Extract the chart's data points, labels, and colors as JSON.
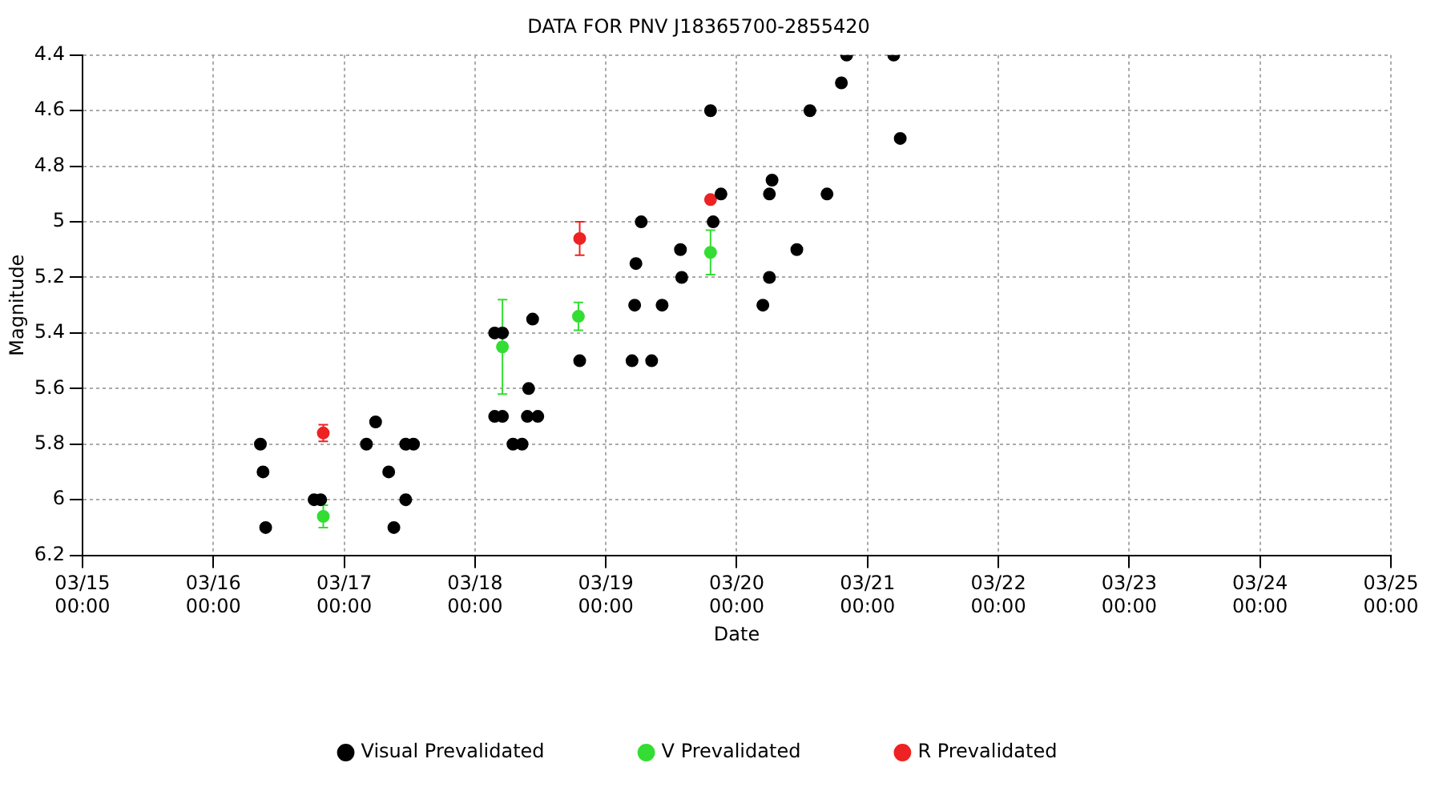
{
  "chart_data": {
    "type": "scatter",
    "title": "DATA FOR PNV J18365700-2855420",
    "xlabel": "Date",
    "ylabel": "Magnitude",
    "xlim": [
      "--03-15T00:00",
      "--03-25T00:00"
    ],
    "xticks": [
      {
        "value": "--03-15T00:00",
        "label": "03/15\n00:00"
      },
      {
        "value": "--03-16T00:00",
        "label": "03/16\n00:00"
      },
      {
        "value": "--03-17T00:00",
        "label": "03/17\n00:00"
      },
      {
        "value": "--03-18T00:00",
        "label": "03/18\n00:00"
      },
      {
        "value": "--03-19T00:00",
        "label": "03/19\n00:00"
      },
      {
        "value": "--03-20T00:00",
        "label": "03/20\n00:00"
      },
      {
        "value": "--03-21T00:00",
        "label": "03/21\n00:00"
      },
      {
        "value": "--03-22T00:00",
        "label": "03/22\n00:00"
      },
      {
        "value": "--03-23T00:00",
        "label": "03/23\n00:00"
      },
      {
        "value": "--03-24T00:00",
        "label": "03/24\n00:00"
      },
      {
        "value": "--03-25T00:00",
        "label": "03/25\n00:00"
      }
    ],
    "ylim": [
      6.2,
      4.4
    ],
    "yticks": [
      4.4,
      4.6,
      4.8,
      5,
      5.2,
      5.4,
      5.6,
      5.8,
      6,
      6.2
    ],
    "grid": true,
    "legend": "bottom",
    "marker": "circle",
    "series": [
      {
        "name": "Visual Prevalidated",
        "color": "#000000",
        "x": [
          "--03-16T08:38",
          "--03-16T09:07",
          "--03-16T09:36",
          "--03-16T18:29",
          "--03-16T19:41",
          "--03-17T04:05",
          "--03-17T05:46",
          "--03-17T08:10",
          "--03-17T09:07",
          "--03-17T11:17",
          "--03-17T11:17",
          "--03-17T12:43",
          "--03-18T03:36",
          "--03-18T05:02",
          "--03-18T03:36",
          "--03-18T05:02",
          "--03-18T06:58",
          "--03-18T08:38",
          "--03-18T09:50",
          "--03-18T10:34",
          "--03-18T09:36",
          "--03-18T11:31",
          "--03-18T19:12",
          "--03-19T05:17",
          "--03-19T10:19",
          "--03-19T04:48",
          "--03-19T08:24",
          "--03-19T05:31",
          "--03-19T06:29",
          "--03-19T13:41",
          "--03-19T13:55",
          "--03-19T19:12",
          "--03-19T19:41",
          "--03-19T21:07",
          "--03-20T04:48",
          "--03-20T06:00",
          "--03-20T06:00",
          "--03-20T06:29",
          "--03-20T11:02",
          "--03-20T13:26",
          "--03-20T16:34",
          "--03-20T19:12",
          "--03-20T20:10",
          "--03-21T04:48",
          "--03-21T06:00"
        ],
        "values": [
          5.8,
          5.9,
          6.1,
          6,
          6,
          5.8,
          5.72,
          5.9,
          6.1,
          6,
          5.8,
          5.8,
          5.4,
          5.4,
          5.7,
          5.7,
          5.8,
          5.8,
          5.6,
          5.35,
          5.7,
          5.7,
          5.5,
          5.3,
          5.3,
          5.5,
          5.5,
          5.15,
          5,
          5.1,
          5.2,
          4.6,
          5,
          4.9,
          5.3,
          5.2,
          4.9,
          4.85,
          5.1,
          4.6,
          4.9,
          4.5,
          4.4,
          4.4,
          4.7
        ]
      },
      {
        "name": "V Prevalidated",
        "color": "#33dd33",
        "x": [
          "--03-16T20:10",
          "--03-18T05:02",
          "--03-18T18:58",
          "--03-19T19:12"
        ],
        "values": [
          6.06,
          5.45,
          5.34,
          5.11
        ],
        "errors": [
          0.04,
          0.17,
          0.05,
          0.08
        ]
      },
      {
        "name": "R Prevalidated",
        "color": "#ee2222",
        "x": [
          "--03-16T20:10",
          "--03-18T19:12",
          "--03-19T19:12"
        ],
        "values": [
          5.76,
          5.06,
          4.92
        ],
        "errors": [
          0.03,
          0.06,
          null
        ]
      }
    ]
  }
}
